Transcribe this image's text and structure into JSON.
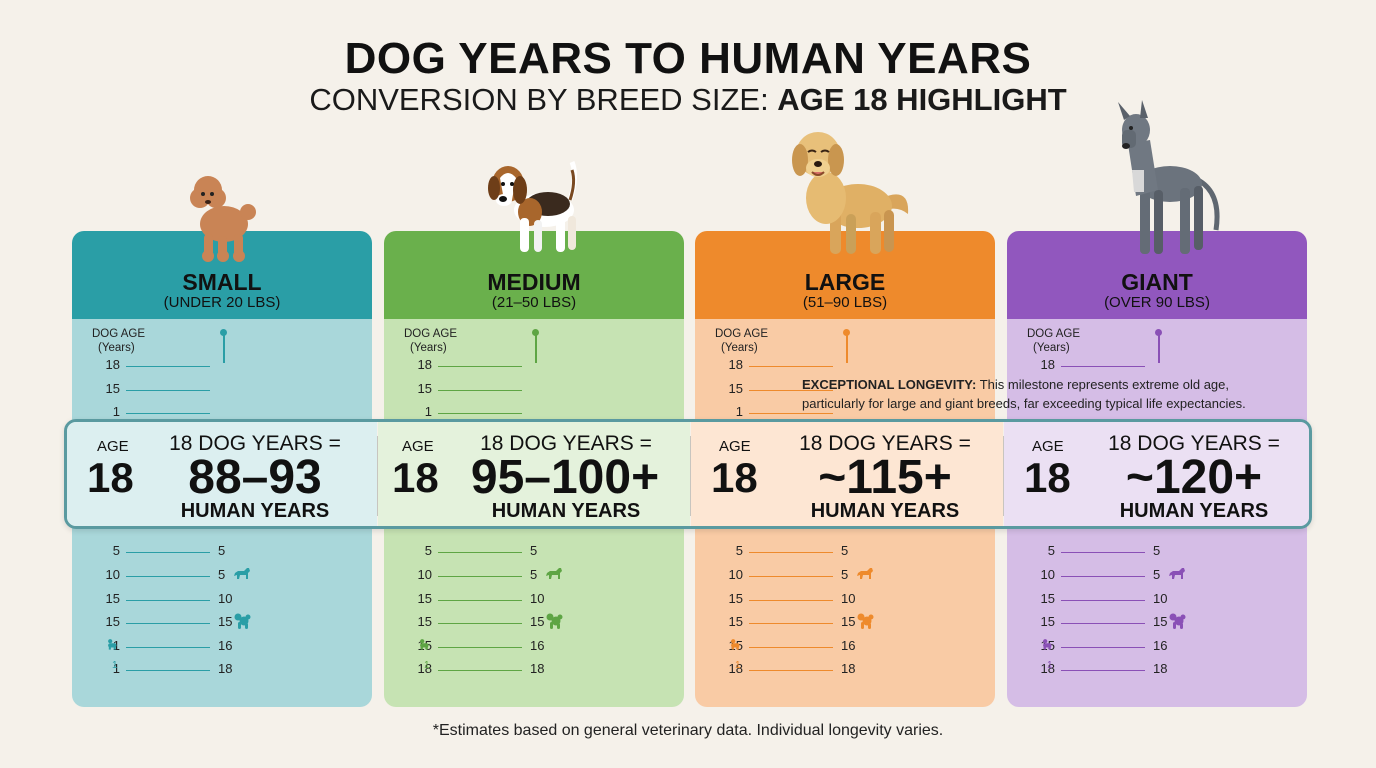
{
  "title": "DOG YEARS TO HUMAN YEARS",
  "subtitle_normal": "CONVERSION BY BREED SIZE: ",
  "subtitle_bold": "AGE 18 HIGHLIGHT",
  "axis_label": "DOG AGE",
  "axis_unit": "(Years)",
  "callout_bold": "EXCEPTIONAL LONGEVITY:",
  "callout_text": " This milestone represents extreme old age, particularly for large and giant breeds, far exceeding typical life expectancies.",
  "footnote": "*Estimates based on general veterinary data. Individual longevity varies.",
  "band": {
    "age_label": "AGE",
    "age_value": "18",
    "dog_years_text": "18 DOG YEARS =",
    "human_years_label": "HUMAN YEARS"
  },
  "cards": [
    {
      "size": "SMALL",
      "range": "(UNDER 20 LBS)",
      "human_value": "88–93",
      "colors": {
        "head": "#2a9ea6",
        "body": "#a9d7da",
        "accent": "#2a9ea6",
        "band": "#dceff0"
      },
      "upper_rows": [
        {
          "l": "18"
        },
        {
          "l": "15"
        },
        {
          "l": "1"
        }
      ],
      "lower_rows": [
        {
          "l": "5",
          "r": "5"
        },
        {
          "l": "10",
          "r": "5",
          "icon": "dog-icon"
        },
        {
          "l": "15",
          "r": "10"
        },
        {
          "l": "15",
          "r": "15",
          "icon": "poodle-icon"
        },
        {
          "l": "1",
          "r": "16",
          "icon": "small-dog-icon"
        },
        {
          "l": "1",
          "r": "18",
          "sup": "1"
        }
      ]
    },
    {
      "size": "MEDIUM",
      "range": "(21–50 LBS)",
      "human_value": "95–100+",
      "colors": {
        "head": "#6ab04c",
        "body": "#c6e3b3",
        "accent": "#5ea544",
        "band": "#e4f2dc"
      },
      "upper_rows": [
        {
          "l": "18"
        },
        {
          "l": "15"
        },
        {
          "l": "1"
        }
      ],
      "lower_rows": [
        {
          "l": "5",
          "r": "5"
        },
        {
          "l": "10",
          "r": "5",
          "icon": "dog-icon"
        },
        {
          "l": "15",
          "r": "10"
        },
        {
          "l": "15",
          "r": "15",
          "icon": "poodle-icon"
        },
        {
          "l": "15",
          "r": "16",
          "icon": "small-dog-icon"
        },
        {
          "l": "18",
          "r": "18",
          "sup": "1"
        }
      ]
    },
    {
      "size": "LARGE",
      "range": "(51–90 LBS)",
      "human_value": "~115+",
      "colors": {
        "head": "#ee8a2c",
        "body": "#f9cba5",
        "accent": "#ee8a2c",
        "band": "#fde6d3"
      },
      "upper_rows": [
        {
          "l": "18"
        },
        {
          "l": "15"
        },
        {
          "l": "1"
        }
      ],
      "lower_rows": [
        {
          "l": "5",
          "r": "5"
        },
        {
          "l": "10",
          "r": "5",
          "icon": "dog-icon"
        },
        {
          "l": "15",
          "r": "10"
        },
        {
          "l": "15",
          "r": "15",
          "icon": "poodle-icon"
        },
        {
          "l": "15",
          "r": "16",
          "icon": "small-dog-icon"
        },
        {
          "l": "18",
          "r": "18",
          "sup": "1"
        }
      ]
    },
    {
      "size": "GIANT",
      "range": "(OVER 90 LBS)",
      "human_value": "~120+",
      "colors": {
        "head": "#9157be",
        "body": "#d5bde6",
        "accent": "#8a50b6",
        "band": "#ebe0f3"
      },
      "upper_rows": [
        {
          "l": "18"
        }
      ],
      "lower_rows": [
        {
          "l": "5",
          "r": "5"
        },
        {
          "l": "10",
          "r": "5",
          "icon": "dog-icon"
        },
        {
          "l": "15",
          "r": "10"
        },
        {
          "l": "15",
          "r": "15",
          "icon": "poodle-icon"
        },
        {
          "l": "15",
          "r": "16",
          "icon": "small-dog-icon"
        },
        {
          "l": "18",
          "r": "18",
          "sup": "1"
        }
      ]
    }
  ]
}
